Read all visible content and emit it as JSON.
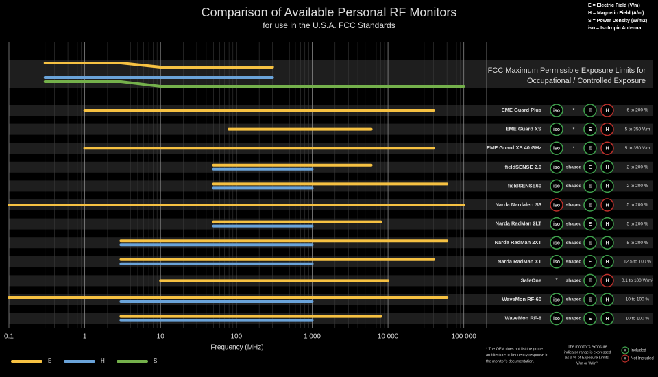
{
  "chart_data": {
    "type": "range",
    "title": "Comparison of Available Personal RF Monitors",
    "subtitle": "for use in the U.S.A. FCC Standards",
    "x_label": "Frequency (MHz)",
    "log_x": true,
    "xlim": [
      0.1,
      200000
    ],
    "xticks": [
      0.1,
      1,
      10,
      100,
      {
        "value": 1000,
        "label": "1 000"
      },
      {
        "value": 10000,
        "label": "10 000"
      },
      {
        "value": 100000,
        "label": "100 000"
      }
    ],
    "minor_grid": true,
    "key": [
      "E  = Electric Field (V/m)",
      "H  = Magnetic Field (A/m)",
      "S  = Power Density (W/m2)",
      "iso = Isotropic Antenna"
    ],
    "series": [
      {
        "name": "E",
        "color": "#f6c142",
        "fcc_x": [
          0.3,
          3,
          10,
          300
        ]
      },
      {
        "name": "H",
        "color": "#6aa3d9",
        "fcc_x": [
          0.3,
          300
        ]
      },
      {
        "name": "S",
        "color": "#74b04b",
        "fcc_x": [
          0.3,
          3,
          10,
          100000
        ]
      }
    ],
    "fcc_label": [
      "FCC Maximum Permissible Exposure Limits for",
      "Occupational / Controlled Exposure"
    ],
    "devices": [
      {
        "name": "EME Guard Plus",
        "e": [
          1,
          40000
        ],
        "antenna": "iso",
        "antenna_ok": true,
        "architecture": "*",
        "e_badge": "E",
        "e_ok": true,
        "h_badge": "H",
        "h_ok": false,
        "range": "6 to 200 %"
      },
      {
        "name": "EME Guard XS",
        "e": [
          80,
          6000
        ],
        "antenna": "iso",
        "antenna_ok": true,
        "architecture": "*",
        "e_badge": "E",
        "e_ok": true,
        "h_badge": "H",
        "h_ok": false,
        "range": "5 to 350 V/m"
      },
      {
        "name": "EME Guard XS 40 GHz",
        "e": [
          1,
          40000
        ],
        "antenna": "iso",
        "antenna_ok": true,
        "architecture": "*",
        "e_badge": "E",
        "e_ok": true,
        "h_badge": "H",
        "h_ok": false,
        "range": "5 to 350 V/m"
      },
      {
        "name": "fieldSENSE 2.0",
        "e": [
          50,
          6000
        ],
        "h": [
          50,
          1000
        ],
        "antenna": "iso",
        "antenna_ok": true,
        "architecture": "shaped",
        "e_badge": "E",
        "e_ok": true,
        "h_badge": "H",
        "h_ok": true,
        "range": "2 to 200 %"
      },
      {
        "name": "fieldSENSE60",
        "e": [
          50,
          60000
        ],
        "h": [
          50,
          1000
        ],
        "antenna": "iso",
        "antenna_ok": true,
        "architecture": "shaped",
        "e_badge": "E",
        "e_ok": true,
        "h_badge": "H",
        "h_ok": true,
        "range": "2 to 200 %"
      },
      {
        "name": "Narda Nardalert S3",
        "e": [
          0.1,
          100000
        ],
        "antenna": "iso",
        "antenna_ok": false,
        "architecture": "shaped",
        "e_badge": "E",
        "e_ok": true,
        "h_badge": "H",
        "h_ok": false,
        "range": "5 to 200 %"
      },
      {
        "name": "Narda RadMan 2LT",
        "e": [
          50,
          8000
        ],
        "h": [
          50,
          1000
        ],
        "antenna": "iso",
        "antenna_ok": true,
        "architecture": "shaped",
        "e_badge": "E",
        "e_ok": true,
        "h_badge": "H",
        "h_ok": true,
        "range": "5 to 200 %"
      },
      {
        "name": "Narda RadMan 2XT",
        "e": [
          3,
          60000
        ],
        "h": [
          3,
          1000
        ],
        "antenna": "iso",
        "antenna_ok": true,
        "architecture": "shaped",
        "e_badge": "E",
        "e_ok": true,
        "h_badge": "H",
        "h_ok": true,
        "range": "5 to 200 %"
      },
      {
        "name": "Narda RadMan XT",
        "e": [
          3,
          40000
        ],
        "h": [
          3,
          1000
        ],
        "antenna": "iso",
        "antenna_ok": true,
        "architecture": "shaped",
        "e_badge": "E",
        "e_ok": true,
        "h_badge": "H",
        "h_ok": true,
        "range": "12.5 to 100 %"
      },
      {
        "name": "SafeOne",
        "e": [
          10,
          10000
        ],
        "antenna": "*",
        "architecture": "shaped",
        "e_badge": "E",
        "e_ok": true,
        "h_badge": "H",
        "h_ok": false,
        "range": "0.1 to 100 W/m²"
      },
      {
        "name": "WaveMon RF-60",
        "e": [
          0.1,
          60000
        ],
        "h": [
          3,
          1000
        ],
        "antenna": "iso",
        "antenna_ok": true,
        "architecture": "shaped",
        "e_badge": "E",
        "e_ok": true,
        "h_badge": "H",
        "h_ok": true,
        "range": "10 to 100 %"
      },
      {
        "name": "WaveMon RF-8",
        "e": [
          3,
          8000
        ],
        "h": [
          3,
          1000
        ],
        "antenna": "iso",
        "antenna_ok": true,
        "architecture": "shaped",
        "e_badge": "E",
        "e_ok": true,
        "h_badge": "H",
        "h_ok": true,
        "range": "10 to 100 %"
      }
    ],
    "footnote": [
      "* The OEM does not list the probe",
      "architecture or frequency response in",
      "the monitor's documentation."
    ],
    "range_note": [
      "The monitor's exposure",
      "indicator range is expressed",
      "as a % of Exposure Limits,",
      "V/m or W/m²."
    ],
    "included": {
      "symbol": "x",
      "label": "Included"
    },
    "not_included": {
      "symbol": "x",
      "label": "Not Included"
    }
  }
}
